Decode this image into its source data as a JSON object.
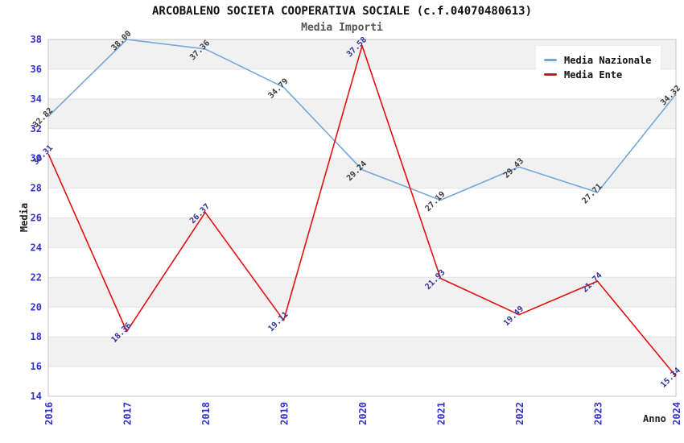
{
  "chart_data": {
    "type": "line",
    "title": "ARCOBALENO SOCIETA COOPERATIVA SOCIALE (c.f.04070480613)",
    "subtitle": "Media Importi",
    "xlabel": "Anno",
    "ylabel": "Media",
    "x": [
      "2016",
      "2017",
      "2018",
      "2019",
      "2020",
      "2021",
      "2022",
      "2023",
      "2024"
    ],
    "series": [
      {
        "name": "Media Nazionale",
        "color": "#74a6da",
        "label_color": "#3a3a3a",
        "values": [
          32.82,
          38.0,
          37.36,
          34.79,
          29.24,
          27.19,
          29.43,
          27.71,
          34.32
        ]
      },
      {
        "name": "Media Ente",
        "color": "#e01010",
        "label_color": "#333399",
        "values": [
          30.31,
          18.36,
          26.37,
          19.11,
          37.58,
          21.93,
          19.49,
          21.74,
          15.34
        ]
      }
    ],
    "ylim": [
      14,
      38
    ],
    "ytick_step": 2,
    "grid": true,
    "legend_position": "top-right",
    "axis_tick_color": "#3333cc",
    "band_color": "#f1f1f1",
    "gridline_color": "#e3e3e3",
    "border_color": "#c5c5c5",
    "point_label_decimals": 2
  }
}
